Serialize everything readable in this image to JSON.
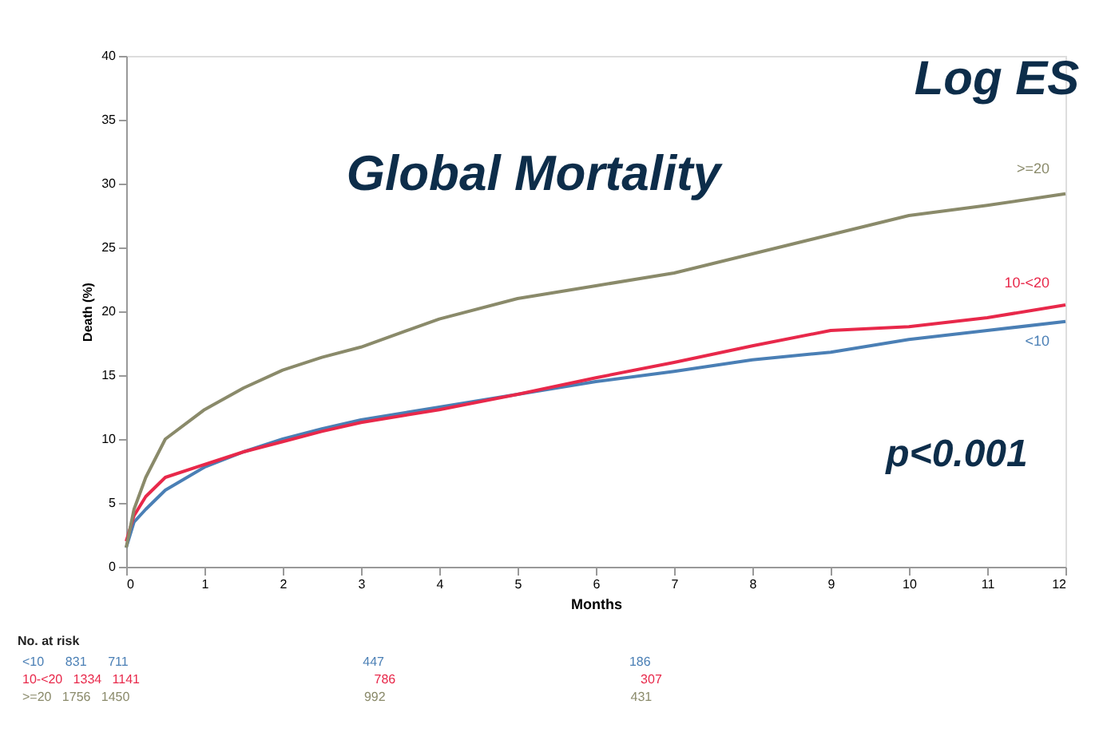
{
  "chart_data": {
    "type": "line",
    "title": "Global Mortality",
    "xlabel": "Months",
    "ylabel": "Death (%)",
    "x": [
      0,
      0.1,
      0.25,
      0.5,
      1,
      1.5,
      2,
      2.5,
      3,
      4,
      5,
      6,
      7,
      8,
      9,
      10,
      11,
      12
    ],
    "xlim": [
      0,
      12
    ],
    "xticks": [
      0,
      1,
      2,
      3,
      4,
      5,
      6,
      7,
      8,
      9,
      10,
      11,
      12
    ],
    "ylim": [
      0,
      40
    ],
    "yticks": [
      0,
      5,
      10,
      15,
      20,
      25,
      30,
      35,
      40
    ],
    "grid": false,
    "legend": false,
    "line_style": "solid",
    "marker": "none",
    "series": [
      {
        "name": "<10",
        "color": "#4a7fb5",
        "values": [
          1.5,
          3.5,
          4.5,
          6,
          7.8,
          9,
          10,
          10.8,
          11.5,
          12.5,
          13.5,
          14.5,
          15.3,
          16.2,
          16.8,
          17.8,
          18.5,
          19.2
        ]
      },
      {
        "name": "10-<20",
        "color": "#e8284a",
        "values": [
          2,
          4,
          5.5,
          7,
          8,
          9,
          9.8,
          10.6,
          11.3,
          12.3,
          13.5,
          14.8,
          16,
          17.3,
          18.5,
          18.8,
          19.5,
          20.5
        ]
      },
      {
        "name": ">=20",
        "color": "#8a8a6a",
        "values": [
          1.5,
          4.5,
          7,
          10,
          12.3,
          14,
          15.4,
          16.4,
          17.2,
          19.4,
          21,
          22,
          23,
          24.5,
          26,
          27.5,
          28.3,
          29.2
        ]
      }
    ],
    "annotations": [
      "Log ES",
      "p<0.001",
      "No. at risk",
      "<10     831     711                                             447                                              186",
      "10-<20   1334   1141                                             786                                              307",
      ">=20   1756   1450                                             992                                              431"
    ]
  }
}
